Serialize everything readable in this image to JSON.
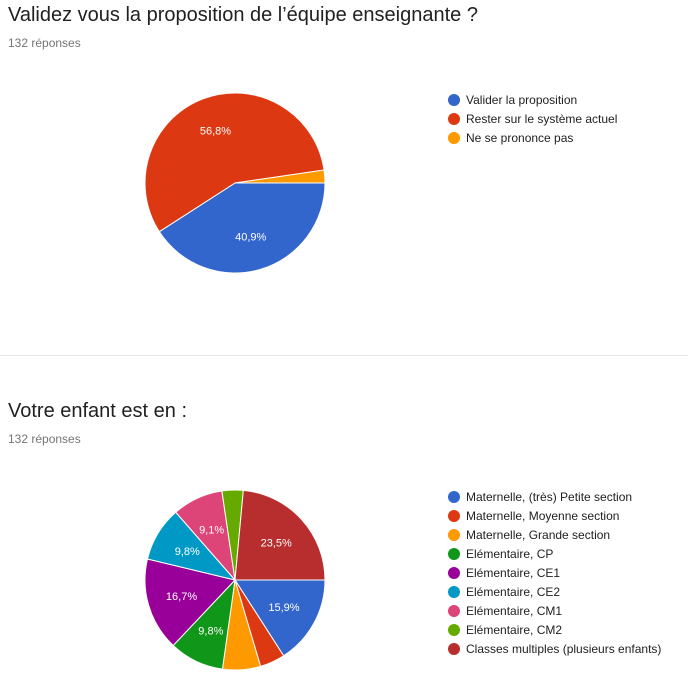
{
  "questions": [
    {
      "title": "Validez vous la proposition de l’équipe enseignante ?",
      "responses": "132 réponses"
    },
    {
      "title": "Votre enfant est en :",
      "responses": "132 réponses"
    }
  ],
  "chart_data": [
    {
      "type": "pie",
      "legend_position": "right",
      "categories": [
        "Valider la proposition",
        "Rester sur le système actuel",
        "Ne se prononce pas"
      ],
      "values": [
        40.9,
        56.8,
        2.3
      ],
      "data_labels": [
        "40,9%",
        "56,8%",
        ""
      ],
      "colors": [
        "#3366cc",
        "#dc3912",
        "#ff9900"
      ]
    },
    {
      "type": "pie",
      "legend_position": "right",
      "categories": [
        "Maternelle, (très) Petite section",
        "Maternelle, Moyenne section",
        "Maternelle, Grande section",
        "Elémentaire, CP",
        "Elémentaire, CE1",
        "Elémentaire, CE2",
        "Elémentaire, CM1",
        "Elémentaire, CM2",
        "Classes multiples (plusieurs enfants)"
      ],
      "values": [
        15.9,
        4.5,
        6.8,
        9.8,
        16.7,
        9.8,
        9.1,
        3.8,
        23.5
      ],
      "data_labels": [
        "15,9%",
        "",
        "",
        "9,8%",
        "16,7%",
        "9,8%",
        "9,1%",
        "",
        "23,5%"
      ],
      "colors": [
        "#3366cc",
        "#dc3912",
        "#ff9900",
        "#109618",
        "#990099",
        "#0099c6",
        "#dd4477",
        "#66aa00",
        "#b82e2e"
      ]
    }
  ]
}
